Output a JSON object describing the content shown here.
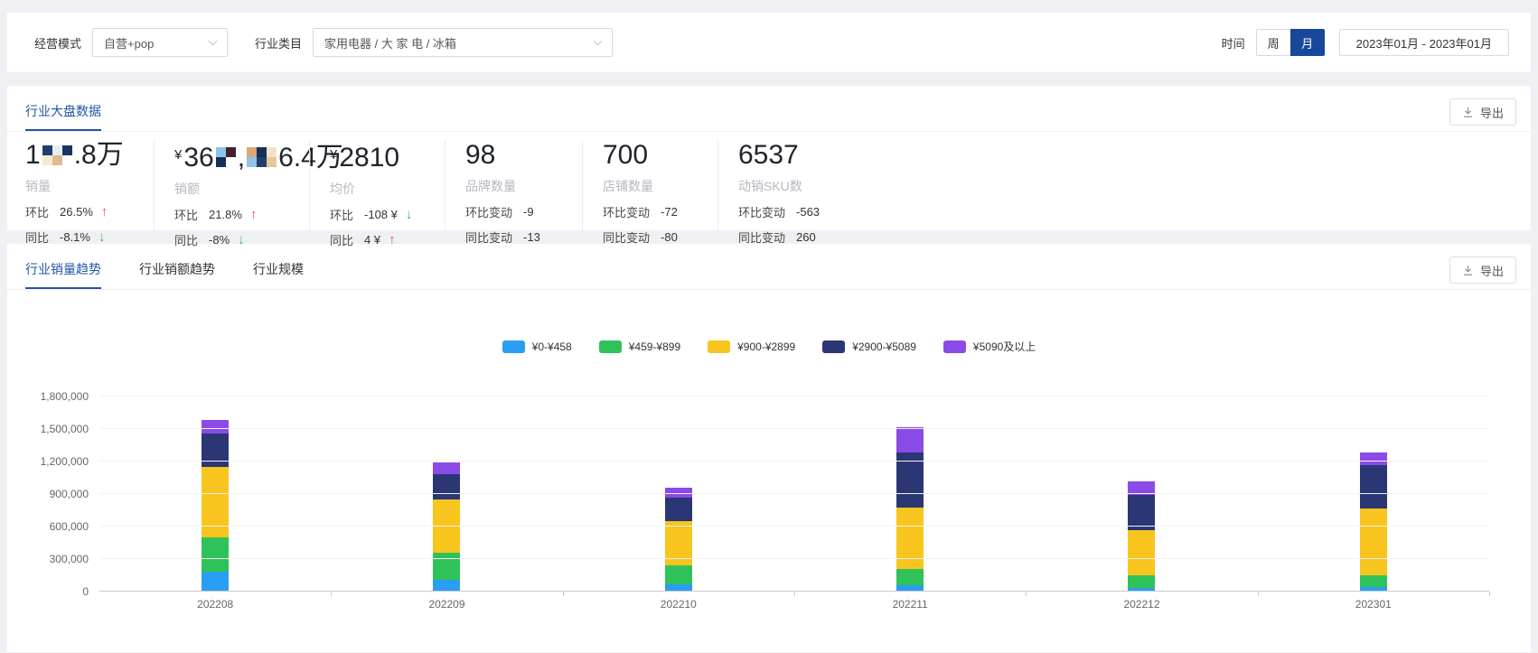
{
  "colors": {
    "accent_blue": "#2355a4",
    "toggle_active_bg": "#17489b",
    "arrow_up": "#f0506e",
    "arrow_down": "#3fb95f",
    "series_blue": "#2a9df4",
    "series_green": "#2fc25b",
    "series_yellow": "#f7c51e",
    "series_navy": "#2b3674",
    "series_purple": "#8a4be8"
  },
  "topbar": {
    "mode_label": "经营模式",
    "mode_value": "自营+pop",
    "category_label": "行业类目",
    "category_value": "家用电器 / 大 家 电 / 冰箱",
    "time_label": "时间",
    "time_options": [
      "周",
      "月"
    ],
    "time_selected": "月",
    "date_range": "2023年01月 - 2023年01月"
  },
  "overview": {
    "title": "行业大盘数据",
    "export_label": "导出",
    "cards": [
      {
        "key": "sales-volume",
        "label": "销量",
        "value_parts": [
          {
            "t": "1"
          },
          {
            "m": "a"
          },
          {
            "t": ".8万"
          }
        ],
        "rows": [
          {
            "k": "环比",
            "v": "26.5%",
            "arrow": "up"
          },
          {
            "k": "同比",
            "v": "-8.1%",
            "arrow": "down"
          }
        ]
      },
      {
        "key": "sales-amount",
        "label": "销额",
        "value_parts": [
          {
            "t": "¥",
            "small": true
          },
          {
            "t": "36"
          },
          {
            "m": "b"
          },
          {
            "t": ","
          },
          {
            "m": "c"
          },
          {
            "t": "6.4万"
          }
        ],
        "rows": [
          {
            "k": "环比",
            "v": "21.8%",
            "arrow": "up"
          },
          {
            "k": "同比",
            "v": "-8%",
            "arrow": "down"
          }
        ]
      },
      {
        "key": "average-price",
        "label": "均价",
        "value_parts": [
          {
            "t": "¥",
            "small": true
          },
          {
            "t": "2810"
          }
        ],
        "rows": [
          {
            "k": "环比",
            "v": "-108 ¥",
            "arrow": "down"
          },
          {
            "k": "同比",
            "v": "4 ¥",
            "arrow": "up"
          }
        ]
      },
      {
        "key": "brand-count",
        "label": "品牌数量",
        "value_parts": [
          {
            "t": "98"
          }
        ],
        "rows": [
          {
            "k": "环比变动",
            "v": "-9"
          },
          {
            "k": "同比变动",
            "v": "-13"
          }
        ]
      },
      {
        "key": "store-count",
        "label": "店铺数量",
        "value_parts": [
          {
            "t": "700"
          }
        ],
        "rows": [
          {
            "k": "环比变动",
            "v": "-72"
          },
          {
            "k": "同比变动",
            "v": "-80"
          }
        ]
      },
      {
        "key": "active-sku-count",
        "label": "动销SKU数",
        "value_parts": [
          {
            "t": "6537"
          }
        ],
        "rows": [
          {
            "k": "环比变动",
            "v": "-563"
          },
          {
            "k": "同比变动",
            "v": "260"
          }
        ]
      }
    ],
    "mosaics": {
      "a": {
        "cols": 3,
        "cells": [
          "#223f6b",
          "#e8edf4",
          "#1b355f",
          "#f6ead0",
          "#dcbb90",
          "#ffffff"
        ]
      },
      "b": {
        "cols": 2,
        "cells": [
          "#8fc2ea",
          "#441f2d",
          "#16305b",
          "#ffffff"
        ]
      },
      "c": {
        "cols": 3,
        "cells": [
          "#d9a977",
          "#16305b",
          "#f2e4c8",
          "#8fc2ea",
          "#223f6b",
          "#e6c89d"
        ]
      }
    }
  },
  "trend": {
    "tabs": [
      {
        "key": "sales-volume-trend",
        "label": "行业销量趋势",
        "active": true
      },
      {
        "key": "sales-amount-trend",
        "label": "行业销额趋势",
        "active": false
      },
      {
        "key": "industry-scale",
        "label": "行业规模",
        "active": false
      }
    ],
    "export_label": "导出"
  },
  "chart_data": {
    "type": "bar",
    "stacked": true,
    "title": "",
    "xlabel": "",
    "ylabel": "",
    "grid": true,
    "legend_position": "top",
    "categories": [
      "202208",
      "202209",
      "202210",
      "202211",
      "202212",
      "202301"
    ],
    "series": [
      {
        "name": "¥0-¥458",
        "color": "#2a9df4",
        "values": [
          180000,
          110000,
          70000,
          60000,
          35000,
          38000
        ]
      },
      {
        "name": "¥459-¥899",
        "color": "#2fc25b",
        "values": [
          320000,
          250000,
          170000,
          145000,
          112000,
          109000
        ]
      },
      {
        "name": "¥900-¥2899",
        "color": "#f7c51e",
        "values": [
          650000,
          490000,
          410000,
          570000,
          420000,
          624000
        ]
      },
      {
        "name": "¥2900-¥5089",
        "color": "#2b3674",
        "values": [
          310000,
          230000,
          220000,
          505000,
          325000,
          398000
        ]
      },
      {
        "name": "¥5090及以上",
        "color": "#8a4be8",
        "values": [
          120000,
          110000,
          90000,
          235000,
          126000,
          115000
        ]
      }
    ],
    "ylim": [
      0,
      1800000
    ],
    "ytick_step": 300000,
    "ytick_labels": [
      "0",
      "300,000",
      "600,000",
      "900,000",
      "1,200,000",
      "1,500,000",
      "1,800,000"
    ]
  }
}
